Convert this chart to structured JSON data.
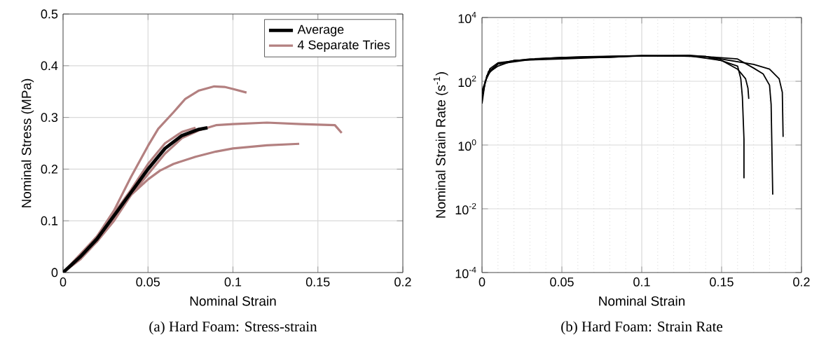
{
  "chart_data": [
    {
      "type": "line",
      "xlabel": "Nominal Strain",
      "ylabel": "Nominal Stress (MPa)",
      "xlim": [
        0,
        0.2
      ],
      "ylim": [
        0,
        0.5
      ],
      "xticks": [
        0,
        0.05,
        0.1,
        0.15,
        0.2
      ],
      "yticks": [
        0,
        0.1,
        0.2,
        0.3,
        0.4,
        0.5
      ],
      "grid": true,
      "legend": "top right",
      "annotations": [
        "(a) Hard Foam: Stress-strain"
      ],
      "series": [
        {
          "name": "Average",
          "color": "#000000",
          "x": [
            0,
            0.01,
            0.02,
            0.03,
            0.04,
            0.05,
            0.06,
            0.07,
            0.08,
            0.085
          ],
          "values": [
            0,
            0.03,
            0.065,
            0.11,
            0.155,
            0.2,
            0.24,
            0.265,
            0.277,
            0.28
          ]
        },
        {
          "name": "4 Separate Tries",
          "color": "#b38080",
          "x": [
            0,
            0.01,
            0.02,
            0.03,
            0.04,
            0.05,
            0.056,
            0.065,
            0.072,
            0.08,
            0.089,
            0.095,
            0.1,
            0.108
          ],
          "values": [
            0,
            0.03,
            0.07,
            0.12,
            0.185,
            0.245,
            0.278,
            0.31,
            0.336,
            0.352,
            0.36,
            0.359,
            0.355,
            0.348
          ]
        },
        {
          "color": "#b38080",
          "x": [
            0,
            0.01,
            0.02,
            0.03,
            0.04,
            0.05,
            0.057,
            0.065,
            0.078,
            0.09,
            0.1,
            0.12,
            0.139
          ],
          "values": [
            0,
            0.025,
            0.06,
            0.1,
            0.15,
            0.18,
            0.197,
            0.21,
            0.224,
            0.234,
            0.24,
            0.246,
            0.249
          ]
        },
        {
          "color": "#b38080",
          "x": [
            0,
            0.02,
            0.04,
            0.05,
            0.06,
            0.07,
            0.08,
            0.09,
            0.1,
            0.12,
            0.14,
            0.16,
            0.164
          ],
          "values": [
            0,
            0.06,
            0.15,
            0.19,
            0.23,
            0.26,
            0.275,
            0.285,
            0.287,
            0.29,
            0.287,
            0.285,
            0.27
          ]
        },
        {
          "color": "#b38080",
          "x": [
            0,
            0.02,
            0.04,
            0.05,
            0.06,
            0.07,
            0.078
          ],
          "values": [
            0,
            0.07,
            0.16,
            0.21,
            0.25,
            0.272,
            0.28
          ]
        }
      ]
    },
    {
      "type": "line",
      "xlabel": "Nominal Strain",
      "ylabel": "Nominal Strain Rate (s$^{-1}$)",
      "log": "y",
      "xlim": [
        0,
        0.2
      ],
      "ylim": [
        0.0001,
        10000
      ],
      "xticks": [
        0,
        0.05,
        0.1,
        0.15,
        0.2
      ],
      "yticks": [
        {
          "value": 0.0001,
          "label": "10$^{-4}$"
        },
        {
          "value": 0.01,
          "label": "10$^{-2}$"
        },
        {
          "value": 1,
          "label": "10$^{0}$"
        },
        {
          "value": 100,
          "label": "10$^{2}$"
        },
        {
          "value": 10000,
          "label": "10$^{4}$"
        }
      ],
      "grid": true,
      "annotations": [
        "(b) Hard Foam: Strain Rate"
      ],
      "series": [
        {
          "color": "#000000",
          "x": [
            0,
            0.002,
            0.005,
            0.01,
            0.02,
            0.05,
            0.08,
            0.1,
            0.12,
            0.14,
            0.15,
            0.16,
            0.162,
            0.163,
            0.164,
            0.164
          ],
          "values": [
            20,
            100,
            200,
            300,
            450,
            560,
            560,
            640,
            620,
            600,
            440,
            300,
            120,
            32,
            1.5,
            0.09
          ]
        },
        {
          "color": "#000000",
          "x": [
            0,
            0.003,
            0.01,
            0.02,
            0.05,
            0.1,
            0.13,
            0.15,
            0.16,
            0.165,
            0.1665,
            0.167
          ],
          "values": [
            30,
            150,
            350,
            450,
            500,
            620,
            620,
            450,
            240,
            120,
            60,
            28
          ]
        },
        {
          "color": "#000000",
          "x": [
            0,
            0.004,
            0.01,
            0.03,
            0.06,
            0.1,
            0.13,
            0.16,
            0.17,
            0.176,
            0.18,
            0.181,
            0.182
          ],
          "values": [
            40,
            200,
            350,
            480,
            560,
            640,
            650,
            500,
            260,
            170,
            75,
            19,
            0.028
          ]
        },
        {
          "color": "#000000",
          "x": [
            0,
            0.005,
            0.01,
            0.03,
            0.06,
            0.1,
            0.14,
            0.17,
            0.18,
            0.186,
            0.188,
            0.1885
          ],
          "values": [
            50,
            250,
            380,
            500,
            580,
            640,
            600,
            340,
            240,
            120,
            45,
            1.8
          ]
        }
      ]
    }
  ]
}
